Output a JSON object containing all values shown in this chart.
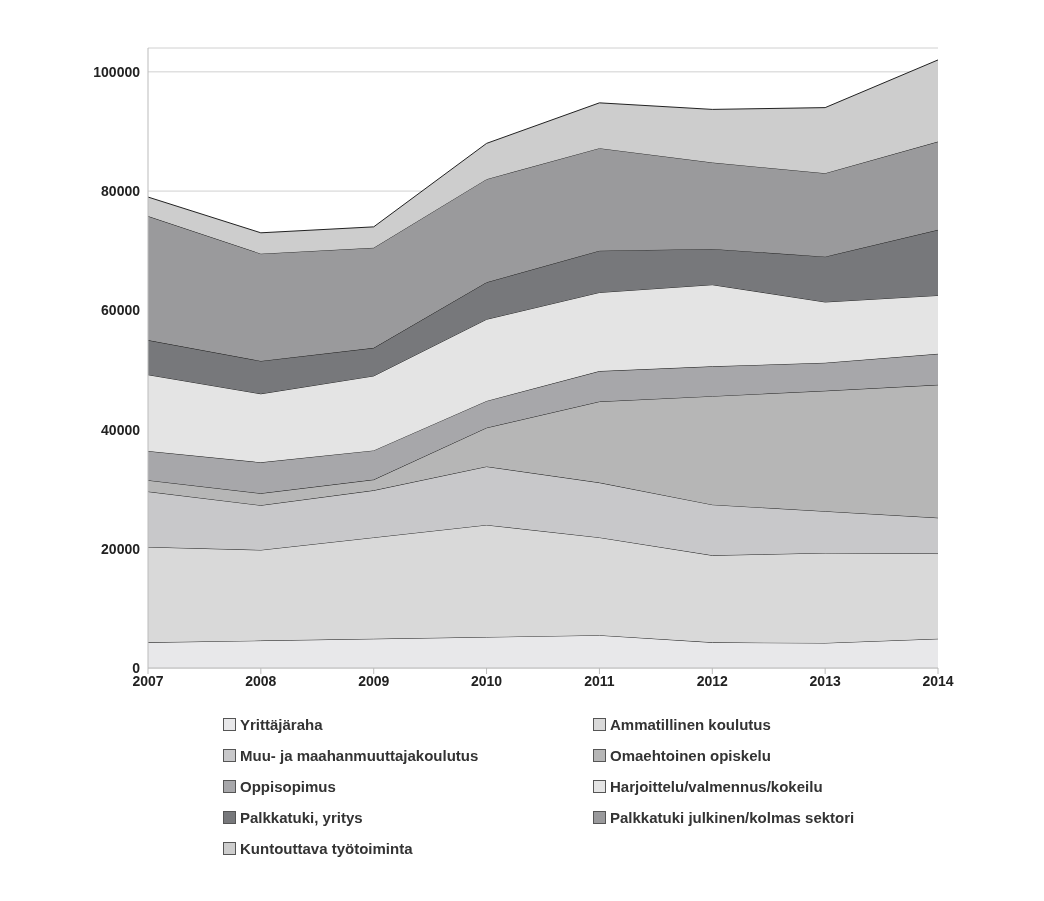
{
  "chart_data": {
    "type": "area",
    "stacked": true,
    "categories": [
      "2007",
      "2008",
      "2009",
      "2010",
      "2011",
      "2012",
      "2013",
      "2014"
    ],
    "series": [
      {
        "name": "Yrittäjäraha",
        "color": "#e8e8ea",
        "values": [
          4300,
          4600,
          4900,
          5200,
          5500,
          4300,
          4200,
          4900
        ]
      },
      {
        "name": "Ammatillinen koulutus",
        "color": "#d9d9d9",
        "values": [
          16000,
          15200,
          17000,
          18800,
          16400,
          14600,
          15100,
          14300
        ]
      },
      {
        "name": "Muu- ja maahanmuuttajakoulutus",
        "color": "#c8c8ca",
        "values": [
          9300,
          7500,
          7900,
          9800,
          9200,
          8500,
          7000,
          6000
        ]
      },
      {
        "name": "Omaehtoinen opiskelu",
        "color": "#b6b6b6",
        "values": [
          1900,
          2000,
          1800,
          6500,
          13600,
          18200,
          20200,
          22300
        ]
      },
      {
        "name": "Oppisopimus",
        "color": "#a7a7aa",
        "values": [
          4900,
          5200,
          4900,
          4500,
          5100,
          5000,
          4700,
          5200
        ]
      },
      {
        "name": "Harjoittelu/valmennus/kokeilu",
        "color": "#e4e4e4",
        "values": [
          12800,
          11500,
          12500,
          13700,
          13200,
          13700,
          10200,
          9800
        ]
      },
      {
        "name": "Palkkatuki, yritys",
        "color": "#77787b",
        "values": [
          5800,
          5500,
          4700,
          6200,
          7000,
          6000,
          7600,
          11000
        ]
      },
      {
        "name": "Palkkatuki julkinen/kolmas sektori",
        "color": "#9a9a9c",
        "values": [
          20800,
          18000,
          16800,
          17300,
          17200,
          14500,
          14000,
          14800
        ]
      },
      {
        "name": "Kuntouttava työtoiminta",
        "color": "#cdcdcd",
        "values": [
          3200,
          3500,
          3500,
          6000,
          7600,
          8900,
          11000,
          13700
        ]
      }
    ],
    "ylim": [
      0,
      104000
    ],
    "yticks": [
      0,
      20000,
      40000,
      60000,
      80000,
      100000
    ],
    "grid": "y",
    "legend": "bottom"
  }
}
